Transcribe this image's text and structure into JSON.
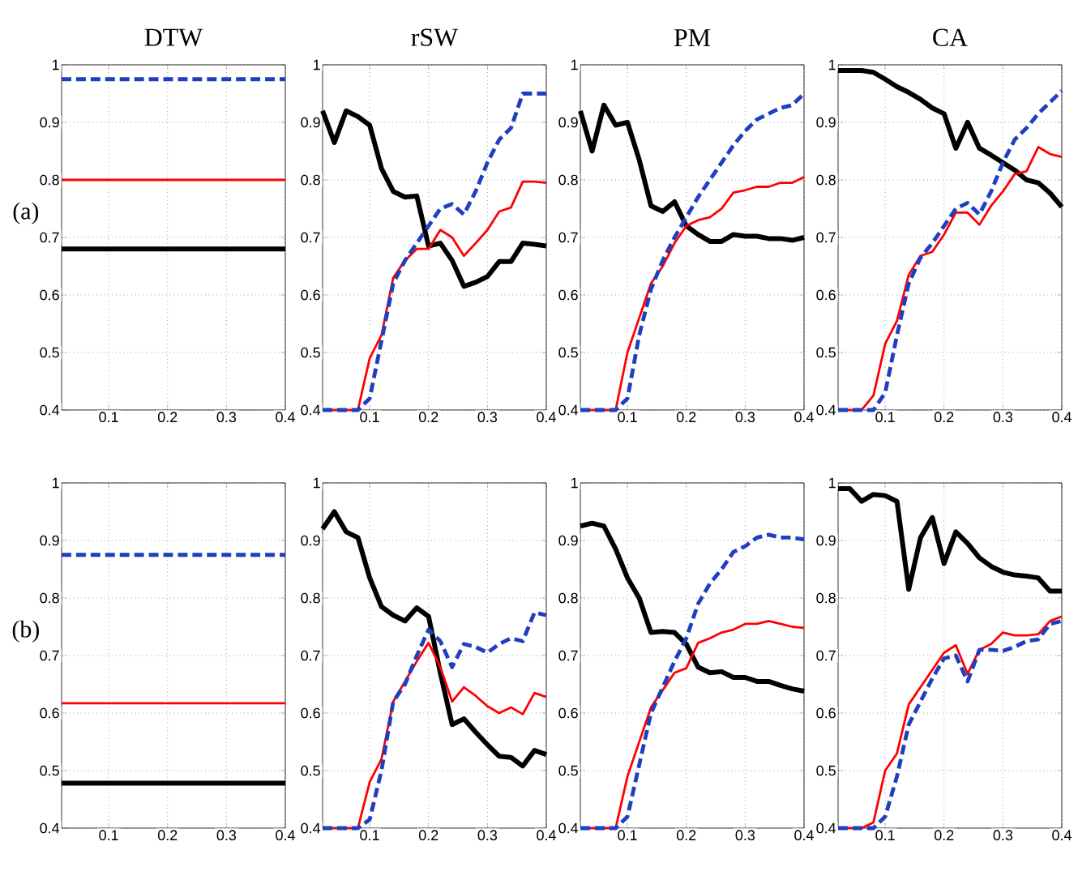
{
  "chart_data": [
    {
      "type": "line",
      "title": "DTW",
      "annotations": [
        "(a)"
      ],
      "x": [
        0.02,
        0.4
      ],
      "xlim": [
        0.02,
        0.4
      ],
      "xticks": [
        0.1,
        0.2,
        0.3,
        0.4
      ],
      "ylim": [
        0.4,
        1
      ],
      "yticks": [
        0.4,
        0.5,
        0.6,
        0.7,
        0.8,
        0.9,
        1
      ],
      "grid": true,
      "series": [
        {
          "color": "#000000",
          "line_style": "solid",
          "values": [
            0.68,
            0.68
          ]
        },
        {
          "color": "#ff0000",
          "line_style": "solid",
          "values": [
            0.8,
            0.8
          ]
        },
        {
          "color": "#1f3fbf",
          "line_style": "dashed",
          "values": [
            0.975,
            0.975
          ]
        }
      ]
    },
    {
      "type": "line",
      "title": "rSW",
      "x": [
        0.02,
        0.04,
        0.06,
        0.08,
        0.1,
        0.12,
        0.14,
        0.16,
        0.18,
        0.2,
        0.22,
        0.24,
        0.26,
        0.28,
        0.3,
        0.32,
        0.34,
        0.36,
        0.38,
        0.4
      ],
      "xlim": [
        0.02,
        0.4
      ],
      "xticks": [
        0.1,
        0.2,
        0.3,
        0.4
      ],
      "ylim": [
        0.4,
        1
      ],
      "yticks": [
        0.4,
        0.5,
        0.6,
        0.7,
        0.8,
        0.9,
        1
      ],
      "grid": true,
      "series": [
        {
          "color": "#000000",
          "line_style": "solid",
          "values": [
            0.92,
            0.865,
            0.92,
            0.91,
            0.895,
            0.82,
            0.78,
            0.77,
            0.772,
            0.685,
            0.69,
            0.66,
            0.615,
            0.622,
            0.632,
            0.658,
            0.658,
            0.69,
            0.688,
            0.685
          ]
        },
        {
          "color": "#ff0000",
          "line_style": "solid",
          "values": [
            0.4,
            0.4,
            0.4,
            0.4,
            0.49,
            0.53,
            0.63,
            0.66,
            0.68,
            0.68,
            0.713,
            0.7,
            0.668,
            0.69,
            0.713,
            0.745,
            0.752,
            0.797,
            0.797,
            0.795
          ]
        },
        {
          "color": "#1f3fbf",
          "line_style": "dashed",
          "values": [
            0.4,
            0.4,
            0.4,
            0.4,
            0.42,
            0.52,
            0.62,
            0.66,
            0.69,
            0.72,
            0.75,
            0.758,
            0.74,
            0.78,
            0.83,
            0.87,
            0.89,
            0.95,
            0.95,
            0.95
          ]
        }
      ]
    },
    {
      "type": "line",
      "title": "PM",
      "x": [
        0.02,
        0.04,
        0.06,
        0.08,
        0.1,
        0.12,
        0.14,
        0.16,
        0.18,
        0.2,
        0.22,
        0.24,
        0.26,
        0.28,
        0.3,
        0.32,
        0.34,
        0.36,
        0.38,
        0.4
      ],
      "xlim": [
        0.02,
        0.4
      ],
      "xticks": [
        0.1,
        0.2,
        0.3,
        0.4
      ],
      "ylim": [
        0.4,
        1
      ],
      "yticks": [
        0.4,
        0.5,
        0.6,
        0.7,
        0.8,
        0.9,
        1
      ],
      "grid": true,
      "series": [
        {
          "color": "#000000",
          "line_style": "solid",
          "values": [
            0.92,
            0.85,
            0.93,
            0.895,
            0.9,
            0.835,
            0.755,
            0.745,
            0.762,
            0.72,
            0.705,
            0.693,
            0.693,
            0.705,
            0.702,
            0.702,
            0.698,
            0.698,
            0.695,
            0.7
          ]
        },
        {
          "color": "#ff0000",
          "line_style": "solid",
          "values": [
            0.4,
            0.4,
            0.4,
            0.4,
            0.5,
            0.56,
            0.62,
            0.65,
            0.69,
            0.72,
            0.73,
            0.735,
            0.75,
            0.778,
            0.782,
            0.788,
            0.788,
            0.795,
            0.795,
            0.805
          ]
        },
        {
          "color": "#1f3fbf",
          "line_style": "dashed",
          "values": [
            0.4,
            0.4,
            0.4,
            0.4,
            0.42,
            0.53,
            0.61,
            0.66,
            0.7,
            0.735,
            0.77,
            0.8,
            0.83,
            0.86,
            0.885,
            0.905,
            0.915,
            0.925,
            0.93,
            0.95
          ]
        }
      ]
    },
    {
      "type": "line",
      "title": "CA",
      "x": [
        0.02,
        0.04,
        0.06,
        0.08,
        0.1,
        0.12,
        0.14,
        0.16,
        0.18,
        0.2,
        0.22,
        0.24,
        0.26,
        0.28,
        0.3,
        0.32,
        0.34,
        0.36,
        0.38,
        0.4
      ],
      "xlim": [
        0.02,
        0.4
      ],
      "xticks": [
        0.1,
        0.2,
        0.3,
        0.4
      ],
      "ylim": [
        0.4,
        1
      ],
      "yticks": [
        0.4,
        0.5,
        0.6,
        0.7,
        0.8,
        0.9,
        1
      ],
      "grid": true,
      "series": [
        {
          "color": "#000000",
          "line_style": "solid",
          "values": [
            0.99,
            0.99,
            0.99,
            0.987,
            0.975,
            0.962,
            0.952,
            0.94,
            0.925,
            0.915,
            0.855,
            0.9,
            0.855,
            0.843,
            0.83,
            0.817,
            0.8,
            0.795,
            0.777,
            0.753
          ]
        },
        {
          "color": "#ff0000",
          "line_style": "solid",
          "values": [
            0.4,
            0.4,
            0.4,
            0.425,
            0.515,
            0.555,
            0.635,
            0.668,
            0.675,
            0.705,
            0.743,
            0.743,
            0.722,
            0.755,
            0.78,
            0.81,
            0.815,
            0.857,
            0.845,
            0.84
          ]
        },
        {
          "color": "#1f3fbf",
          "line_style": "dashed",
          "values": [
            0.4,
            0.4,
            0.4,
            0.4,
            0.43,
            0.53,
            0.62,
            0.665,
            0.69,
            0.72,
            0.75,
            0.76,
            0.74,
            0.78,
            0.83,
            0.87,
            0.89,
            0.915,
            0.935,
            0.955
          ]
        }
      ]
    },
    {
      "type": "line",
      "annotations": [
        "(b)"
      ],
      "x": [
        0.02,
        0.4
      ],
      "xlim": [
        0.02,
        0.4
      ],
      "xticks": [
        0.1,
        0.2,
        0.3,
        0.4
      ],
      "ylim": [
        0.4,
        1
      ],
      "yticks": [
        0.4,
        0.5,
        0.6,
        0.7,
        0.8,
        0.9,
        1
      ],
      "grid": true,
      "series": [
        {
          "color": "#000000",
          "line_style": "solid",
          "values": [
            0.478,
            0.478
          ]
        },
        {
          "color": "#ff0000",
          "line_style": "solid",
          "values": [
            0.617,
            0.617
          ]
        },
        {
          "color": "#1f3fbf",
          "line_style": "dashed",
          "values": [
            0.875,
            0.875
          ]
        }
      ]
    },
    {
      "type": "line",
      "x": [
        0.02,
        0.04,
        0.06,
        0.08,
        0.1,
        0.12,
        0.14,
        0.16,
        0.18,
        0.2,
        0.22,
        0.24,
        0.26,
        0.28,
        0.3,
        0.32,
        0.34,
        0.36,
        0.38,
        0.4
      ],
      "xlim": [
        0.02,
        0.4
      ],
      "xticks": [
        0.1,
        0.2,
        0.3,
        0.4
      ],
      "ylim": [
        0.4,
        1
      ],
      "yticks": [
        0.4,
        0.5,
        0.6,
        0.7,
        0.8,
        0.9,
        1
      ],
      "grid": true,
      "series": [
        {
          "color": "#000000",
          "line_style": "solid",
          "values": [
            0.92,
            0.95,
            0.915,
            0.905,
            0.835,
            0.785,
            0.77,
            0.76,
            0.783,
            0.768,
            0.67,
            0.58,
            0.59,
            0.567,
            0.545,
            0.525,
            0.523,
            0.508,
            0.535,
            0.528
          ]
        },
        {
          "color": "#ff0000",
          "line_style": "solid",
          "values": [
            0.4,
            0.4,
            0.4,
            0.4,
            0.48,
            0.52,
            0.62,
            0.655,
            0.69,
            0.722,
            0.68,
            0.62,
            0.645,
            0.63,
            0.612,
            0.6,
            0.61,
            0.598,
            0.635,
            0.628
          ]
        },
        {
          "color": "#1f3fbf",
          "line_style": "dashed",
          "values": [
            0.4,
            0.4,
            0.4,
            0.4,
            0.415,
            0.5,
            0.62,
            0.65,
            0.7,
            0.745,
            0.725,
            0.68,
            0.72,
            0.715,
            0.705,
            0.72,
            0.73,
            0.725,
            0.775,
            0.77
          ]
        }
      ]
    },
    {
      "type": "line",
      "x": [
        0.02,
        0.04,
        0.06,
        0.08,
        0.1,
        0.12,
        0.14,
        0.16,
        0.18,
        0.2,
        0.22,
        0.24,
        0.26,
        0.28,
        0.3,
        0.32,
        0.34,
        0.36,
        0.38,
        0.4
      ],
      "xlim": [
        0.02,
        0.4
      ],
      "xticks": [
        0.1,
        0.2,
        0.3,
        0.4
      ],
      "ylim": [
        0.4,
        1
      ],
      "yticks": [
        0.4,
        0.5,
        0.6,
        0.7,
        0.8,
        0.9,
        1
      ],
      "grid": true,
      "series": [
        {
          "color": "#000000",
          "line_style": "solid",
          "values": [
            0.925,
            0.93,
            0.925,
            0.885,
            0.835,
            0.8,
            0.74,
            0.742,
            0.74,
            0.72,
            0.68,
            0.67,
            0.672,
            0.662,
            0.662,
            0.655,
            0.655,
            0.648,
            0.642,
            0.638
          ]
        },
        {
          "color": "#ff0000",
          "line_style": "solid",
          "values": [
            0.4,
            0.4,
            0.4,
            0.4,
            0.49,
            0.55,
            0.61,
            0.64,
            0.67,
            0.678,
            0.722,
            0.73,
            0.74,
            0.745,
            0.755,
            0.755,
            0.76,
            0.755,
            0.75,
            0.748
          ]
        },
        {
          "color": "#1f3fbf",
          "line_style": "dashed",
          "values": [
            0.4,
            0.4,
            0.4,
            0.4,
            0.42,
            0.51,
            0.6,
            0.645,
            0.69,
            0.73,
            0.79,
            0.825,
            0.85,
            0.88,
            0.89,
            0.905,
            0.91,
            0.905,
            0.905,
            0.902
          ]
        }
      ]
    },
    {
      "type": "line",
      "x": [
        0.02,
        0.04,
        0.06,
        0.08,
        0.1,
        0.12,
        0.14,
        0.16,
        0.18,
        0.2,
        0.22,
        0.24,
        0.26,
        0.28,
        0.3,
        0.32,
        0.34,
        0.36,
        0.38,
        0.4
      ],
      "xlim": [
        0.02,
        0.4
      ],
      "xticks": [
        0.1,
        0.2,
        0.3,
        0.4
      ],
      "ylim": [
        0.4,
        1
      ],
      "yticks": [
        0.4,
        0.5,
        0.6,
        0.7,
        0.8,
        0.9,
        1
      ],
      "grid": true,
      "series": [
        {
          "color": "#000000",
          "line_style": "solid",
          "values": [
            0.99,
            0.99,
            0.968,
            0.98,
            0.978,
            0.968,
            0.815,
            0.905,
            0.94,
            0.86,
            0.915,
            0.895,
            0.87,
            0.855,
            0.845,
            0.84,
            0.838,
            0.835,
            0.812,
            0.812
          ]
        },
        {
          "color": "#ff0000",
          "line_style": "solid",
          "values": [
            0.4,
            0.4,
            0.4,
            0.41,
            0.5,
            0.53,
            0.615,
            0.645,
            0.675,
            0.705,
            0.718,
            0.668,
            0.71,
            0.72,
            0.74,
            0.735,
            0.735,
            0.737,
            0.76,
            0.768
          ]
        },
        {
          "color": "#1f3fbf",
          "line_style": "dashed",
          "values": [
            0.4,
            0.4,
            0.4,
            0.4,
            0.42,
            0.49,
            0.58,
            0.62,
            0.66,
            0.695,
            0.7,
            0.655,
            0.71,
            0.71,
            0.708,
            0.715,
            0.725,
            0.728,
            0.755,
            0.76
          ]
        }
      ]
    }
  ]
}
